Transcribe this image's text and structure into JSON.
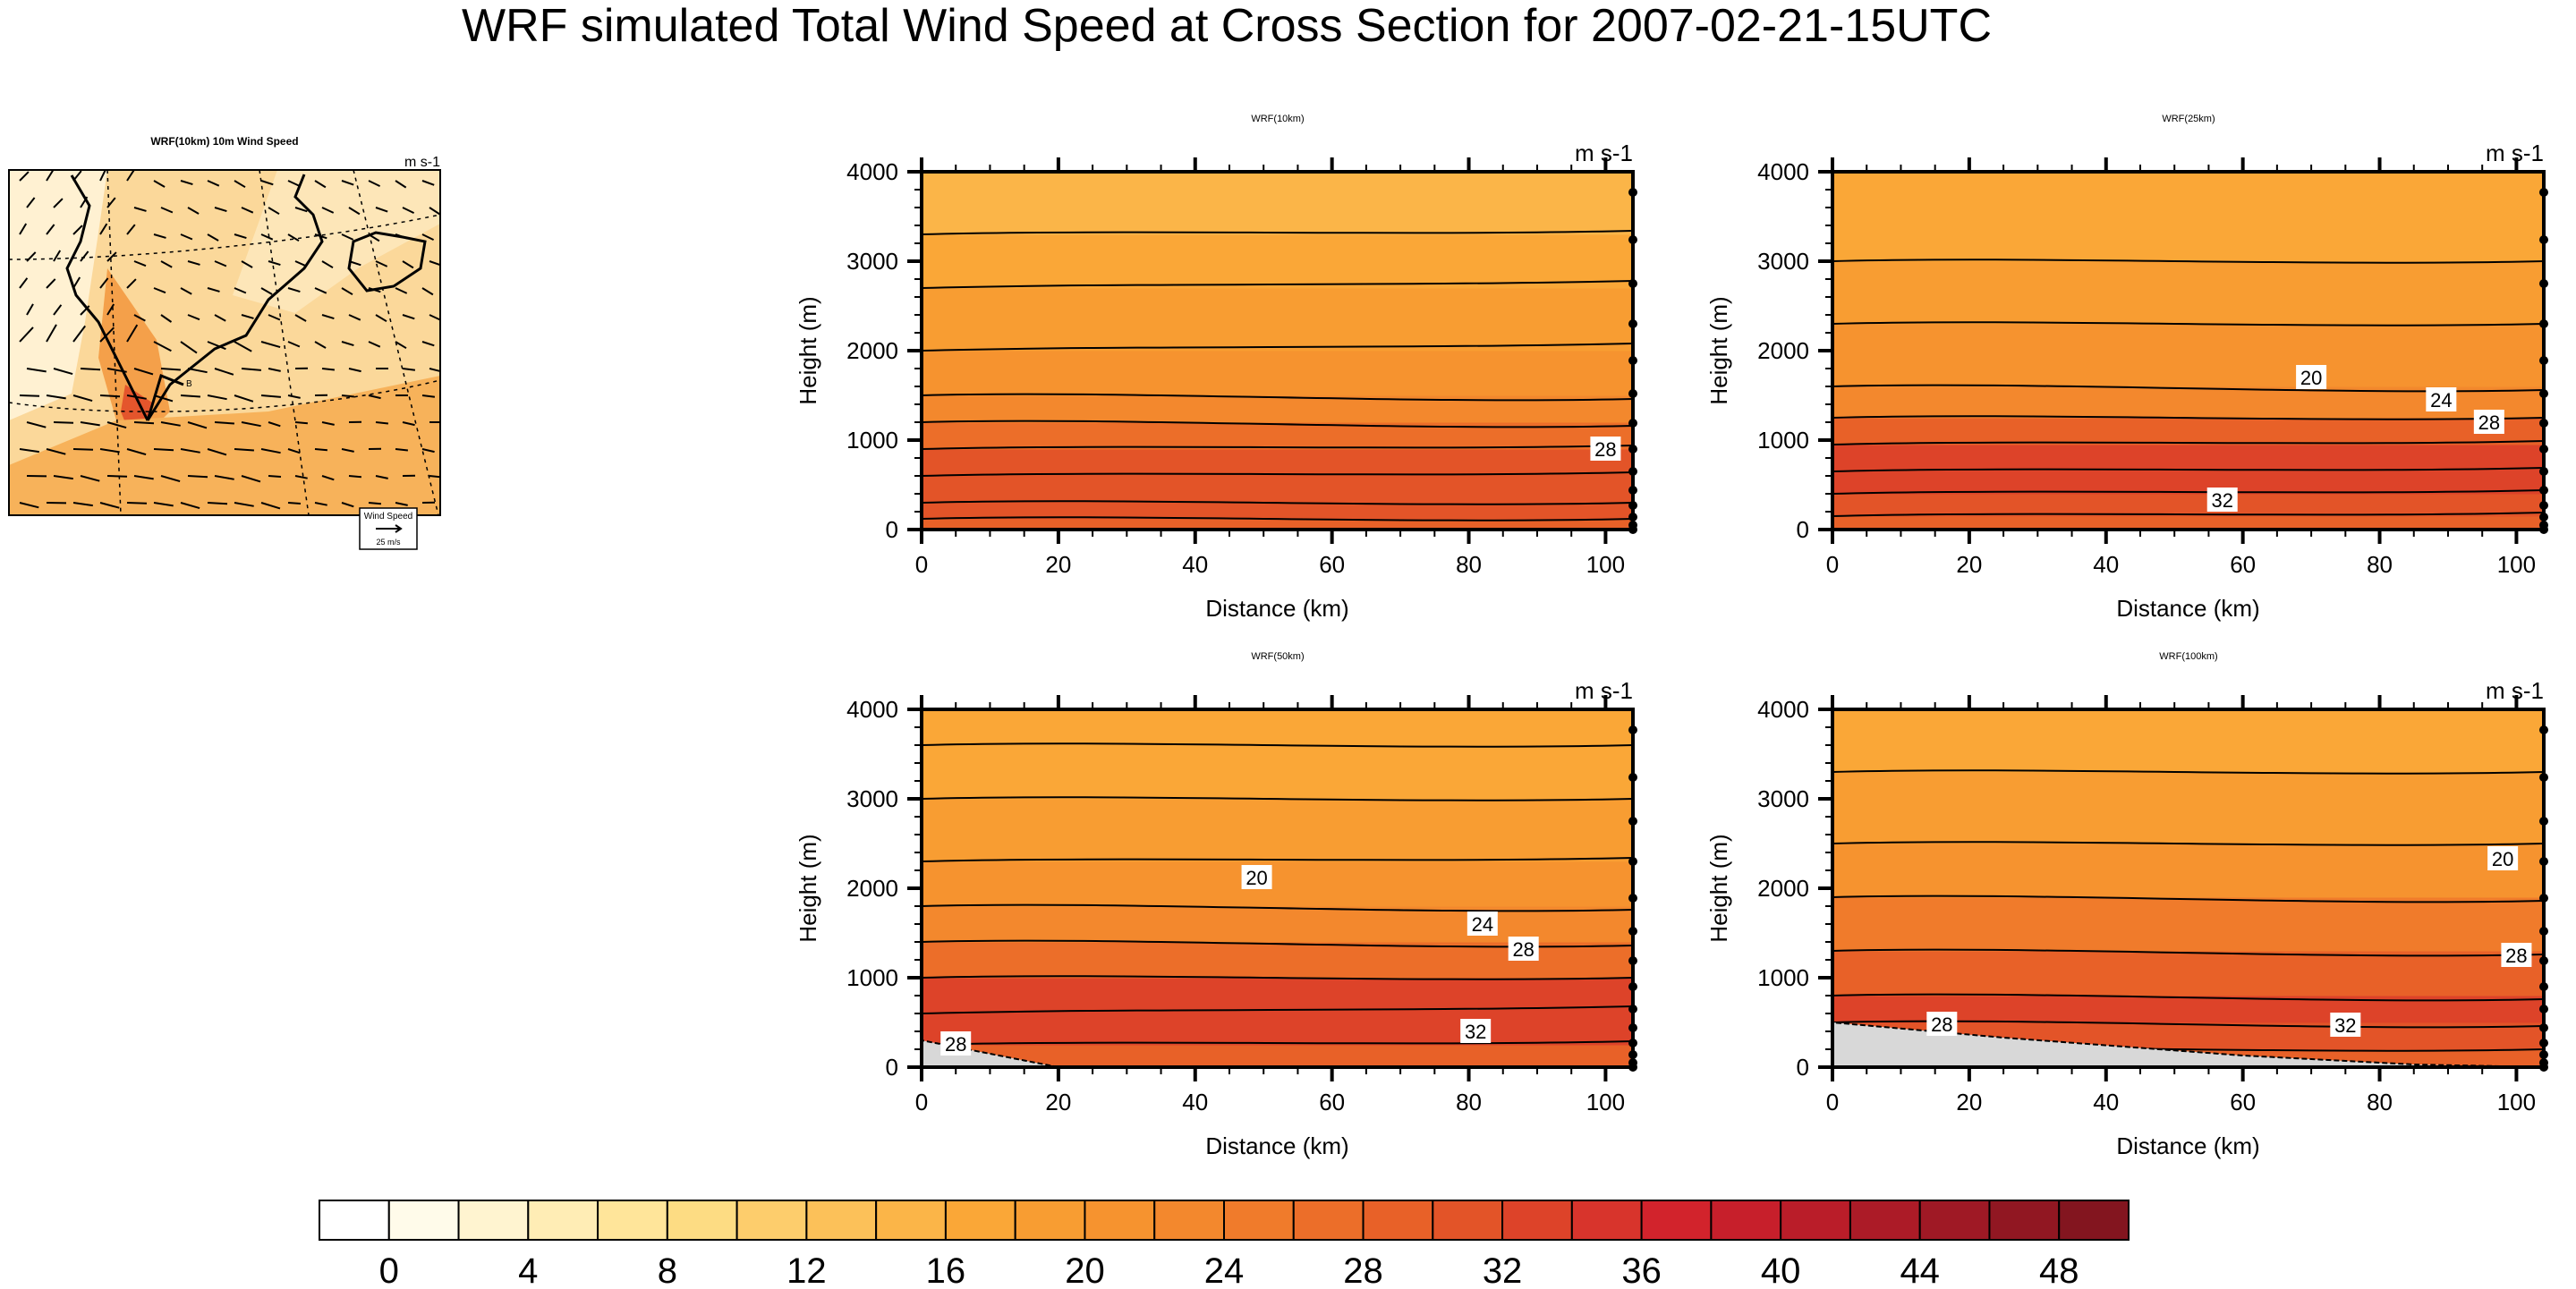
{
  "figure": {
    "title": "WRF simulated Total Wind Speed at Cross Section for 2007-02-21-15UTC"
  },
  "map": {
    "title": "WRF(10km) 10m Wind Speed",
    "units": "m s-1",
    "ref_vector_title": "Wind Speed",
    "ref_vector_value": "25 m/s",
    "cross_section_end_label": "B"
  },
  "colors": {
    "scale": [
      "#ffffff",
      "#fffbea",
      "#fff4d0",
      "#ffedb5",
      "#ffe59a",
      "#fddc83",
      "#fdcd6c",
      "#fcc159",
      "#fbb548",
      "#faa737",
      "#f89d32",
      "#f6932f",
      "#f3882d",
      "#f07b2b",
      "#ec6e29",
      "#e86128",
      "#e35428",
      "#dd4329",
      "#d8342c",
      "#d2232c",
      "#c71f2b",
      "#ba1d29",
      "#ac1b27",
      "#9f1925",
      "#911722",
      "#83151f"
    ],
    "terrain": "#d8d8d8"
  },
  "chart_data": [
    {
      "type": "heatmap",
      "title": "WRF(10km)",
      "units": "m s-1",
      "xlabel": "Distance (km)",
      "ylabel": "Height (m)",
      "xlim": [
        0,
        104
      ],
      "ylim": [
        0,
        4000
      ],
      "x_ticks": [
        "0",
        "20",
        "40",
        "60",
        "80",
        "100"
      ],
      "y_ticks": [
        "0",
        "1000",
        "2000",
        "3000",
        "4000"
      ],
      "contour_labels": [
        {
          "text": "28",
          "x": 100,
          "y": 900
        }
      ],
      "profile": [
        {
          "z": 0,
          "v": [
            27,
            27
          ]
        },
        {
          "z": 120,
          "v": [
            29,
            29
          ]
        },
        {
          "z": 300,
          "v": [
            31,
            31
          ]
        },
        {
          "z": 600,
          "v": [
            33,
            32
          ]
        },
        {
          "z": 900,
          "v": [
            30,
            29
          ]
        },
        {
          "z": 1200,
          "v": [
            25,
            26
          ]
        },
        {
          "z": 1500,
          "v": [
            21,
            22
          ]
        },
        {
          "z": 2000,
          "v": [
            20,
            18
          ]
        },
        {
          "z": 2700,
          "v": [
            18,
            16
          ]
        },
        {
          "z": 3300,
          "v": [
            16,
            15
          ]
        },
        {
          "z": 4000,
          "v": [
            15,
            14
          ]
        }
      ],
      "terrain": []
    },
    {
      "type": "heatmap",
      "title": "WRF(25km)",
      "units": "m s-1",
      "xlabel": "Distance (km)",
      "ylabel": "Height (m)",
      "xlim": [
        0,
        104
      ],
      "ylim": [
        0,
        4000
      ],
      "x_ticks": [
        "0",
        "20",
        "40",
        "60",
        "80",
        "100"
      ],
      "y_ticks": [
        "0",
        "1000",
        "2000",
        "3000",
        "4000"
      ],
      "contour_labels": [
        {
          "text": "20",
          "x": 70,
          "y": 1700
        },
        {
          "text": "24",
          "x": 89,
          "y": 1450
        },
        {
          "text": "28",
          "x": 96,
          "y": 1200
        },
        {
          "text": "32",
          "x": 57,
          "y": 330
        }
      ],
      "profile": [
        {
          "z": 0,
          "v": [
            28,
            27
          ]
        },
        {
          "z": 150,
          "v": [
            31,
            30
          ]
        },
        {
          "z": 400,
          "v": [
            33,
            32
          ]
        },
        {
          "z": 650,
          "v": [
            34,
            33
          ]
        },
        {
          "z": 950,
          "v": [
            31,
            30
          ]
        },
        {
          "z": 1250,
          "v": [
            26,
            26
          ]
        },
        {
          "z": 1600,
          "v": [
            21,
            22
          ]
        },
        {
          "z": 2300,
          "v": [
            19,
            19
          ]
        },
        {
          "z": 3000,
          "v": [
            19,
            19
          ]
        },
        {
          "z": 4000,
          "v": [
            17,
            16
          ]
        }
      ],
      "terrain": []
    },
    {
      "type": "heatmap",
      "title": "WRF(50km)",
      "units": "m s-1",
      "xlabel": "Distance (km)",
      "ylabel": "Height (m)",
      "xlim": [
        0,
        104
      ],
      "ylim": [
        0,
        4000
      ],
      "x_ticks": [
        "0",
        "20",
        "40",
        "60",
        "80",
        "100"
      ],
      "y_ticks": [
        "0",
        "1000",
        "2000",
        "3000",
        "4000"
      ],
      "contour_labels": [
        {
          "text": "20",
          "x": 49,
          "y": 2120
        },
        {
          "text": "24",
          "x": 82,
          "y": 1600
        },
        {
          "text": "28",
          "x": 88,
          "y": 1320
        },
        {
          "text": "32",
          "x": 81,
          "y": 400
        },
        {
          "text": "28",
          "x": 5,
          "y": 260
        }
      ],
      "profile": [
        {
          "z": 0,
          "v": [
            28,
            28
          ]
        },
        {
          "z": 250,
          "v": [
            32,
            31
          ]
        },
        {
          "z": 600,
          "v": [
            35,
            33
          ]
        },
        {
          "z": 1000,
          "v": [
            30,
            30
          ]
        },
        {
          "z": 1400,
          "v": [
            25,
            26
          ]
        },
        {
          "z": 1800,
          "v": [
            21,
            22
          ]
        },
        {
          "z": 2300,
          "v": [
            19,
            18
          ]
        },
        {
          "z": 3000,
          "v": [
            18,
            18
          ]
        },
        {
          "z": 3600,
          "v": [
            17,
            17
          ]
        },
        {
          "z": 4000,
          "v": [
            16,
            16
          ]
        }
      ],
      "terrain": [
        {
          "x": 0,
          "z": 300
        },
        {
          "x": 20,
          "z": 0
        }
      ]
    },
    {
      "type": "heatmap",
      "title": "WRF(100km)",
      "units": "m s-1",
      "xlabel": "Distance (km)",
      "ylabel": "Height (m)",
      "xlim": [
        0,
        104
      ],
      "ylim": [
        0,
        4000
      ],
      "x_ticks": [
        "0",
        "20",
        "40",
        "60",
        "80",
        "100"
      ],
      "y_ticks": [
        "0",
        "1000",
        "2000",
        "3000",
        "4000"
      ],
      "contour_labels": [
        {
          "text": "20",
          "x": 98,
          "y": 2330
        },
        {
          "text": "28",
          "x": 100,
          "y": 1250
        },
        {
          "text": "32",
          "x": 75,
          "y": 470
        },
        {
          "text": "28",
          "x": 16,
          "y": 480
        }
      ],
      "profile": [
        {
          "z": 0,
          "v": [
            27,
            27
          ]
        },
        {
          "z": 200,
          "v": [
            30,
            30
          ]
        },
        {
          "z": 500,
          "v": [
            32,
            33
          ]
        },
        {
          "z": 800,
          "v": [
            31,
            32
          ]
        },
        {
          "z": 1300,
          "v": [
            27,
            28
          ]
        },
        {
          "z": 1900,
          "v": [
            22,
            23
          ]
        },
        {
          "z": 2500,
          "v": [
            19,
            19
          ]
        },
        {
          "z": 3300,
          "v": [
            17,
            17
          ]
        },
        {
          "z": 4000,
          "v": [
            16,
            15
          ]
        }
      ],
      "terrain": [
        {
          "x": 0,
          "z": 500
        },
        {
          "x": 25,
          "z": 330
        },
        {
          "x": 60,
          "z": 130
        },
        {
          "x": 85,
          "z": 30
        },
        {
          "x": 104,
          "z": 0
        }
      ]
    }
  ],
  "colorbar": {
    "tick_labels": [
      "0",
      "4",
      "8",
      "12",
      "16",
      "20",
      "24",
      "28",
      "32",
      "36",
      "40",
      "44",
      "48"
    ],
    "boxes": 26
  }
}
